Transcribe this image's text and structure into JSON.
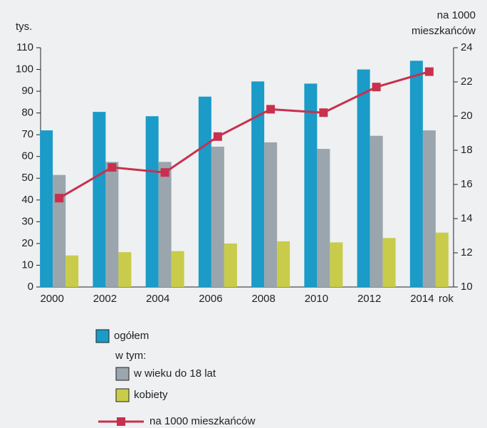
{
  "chart_data": {
    "type": "bar",
    "y_label": "tys.",
    "y2_label": [
      "na 1000",
      "mieszkańców"
    ],
    "x_label": "rok",
    "categories": [
      "2000",
      "2002",
      "2004",
      "2006",
      "2008",
      "2010",
      "2012",
      "2014"
    ],
    "series": [
      {
        "name": "ogółem",
        "color": "#1a9bc8",
        "values": [
          72,
          80.5,
          78.5,
          87.5,
          94.5,
          93.5,
          100,
          104
        ]
      },
      {
        "name": "w wieku do 18 lat",
        "color": "#9aa5ad",
        "values": [
          51.5,
          57.5,
          57.5,
          64.5,
          66.5,
          63.5,
          69.5,
          72
        ]
      },
      {
        "name": "kobiety",
        "color": "#c8cc4a",
        "values": [
          14.5,
          16,
          16.5,
          20,
          21,
          20.5,
          22.5,
          25
        ]
      },
      {
        "name": "na 1000 mieszkańców",
        "color": "#c8304e",
        "type": "line",
        "axis": "y2",
        "values": [
          15.2,
          17.0,
          16.7,
          18.8,
          20.4,
          20.2,
          21.7,
          22.6
        ]
      }
    ],
    "legend_note": "w tym:",
    "ylim": [
      0,
      110
    ],
    "yticks": [
      0,
      10,
      20,
      30,
      40,
      50,
      60,
      70,
      80,
      90,
      100,
      110
    ],
    "y2lim": [
      10,
      24
    ],
    "y2ticks": [
      10,
      12,
      14,
      16,
      18,
      20,
      22,
      24
    ],
    "grid": false
  }
}
